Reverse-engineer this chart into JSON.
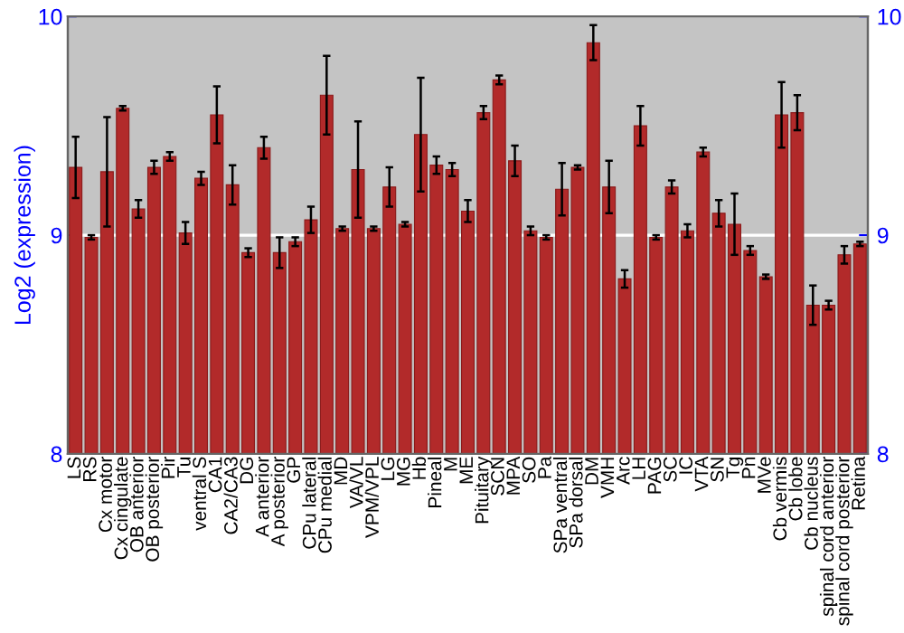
{
  "chart_data": {
    "type": "bar",
    "ylabel": "Log2 (expression)",
    "categories": [
      "LS",
      "RS",
      "Cx motor",
      "Cx cingulate",
      "OB anterior",
      "OB posterior",
      "Pir",
      "Tu",
      "ventral S",
      "CA1",
      "CA2/CA3",
      "DG",
      "A anterior",
      "A posterior",
      "GP",
      "CPu lateral",
      "CPu medial",
      "MD",
      "VA/VL",
      "VPM/VPL",
      "LG",
      "MG",
      "Hb",
      "Pineal",
      "M",
      "ME",
      "Pituitary",
      "SCN",
      "MPA",
      "SO",
      "Pa",
      "SPa ventral",
      "SPa dorsal",
      "DM",
      "VMH",
      "Arc",
      "LH",
      "PAG",
      "SC",
      "IC",
      "VTA",
      "SN",
      "Tg",
      "Pn",
      "MVe",
      "Cb vermis",
      "Cb lobe",
      "Cb nucleus",
      "spinal cord anterior",
      "spinal cord posterior",
      "Retina"
    ],
    "values": [
      9.31,
      8.99,
      9.29,
      9.58,
      9.12,
      9.31,
      9.36,
      9.01,
      9.26,
      9.55,
      9.23,
      8.92,
      9.4,
      8.92,
      8.97,
      9.07,
      9.64,
      9.03,
      9.3,
      9.03,
      9.22,
      9.05,
      9.46,
      9.32,
      9.3,
      9.11,
      9.56,
      9.71,
      9.34,
      9.02,
      8.99,
      9.21,
      9.31,
      9.88,
      9.22,
      8.8,
      9.5,
      8.99,
      9.22,
      9.02,
      9.38,
      9.1,
      9.05,
      8.93,
      8.81,
      9.55,
      9.56,
      8.68,
      8.68,
      8.91,
      8.96
    ],
    "errors": [
      0.14,
      0.01,
      0.25,
      0.01,
      0.04,
      0.03,
      0.02,
      0.05,
      0.03,
      0.13,
      0.09,
      0.02,
      0.05,
      0.07,
      0.02,
      0.06,
      0.18,
      0.01,
      0.22,
      0.01,
      0.09,
      0.01,
      0.26,
      0.04,
      0.03,
      0.05,
      0.03,
      0.02,
      0.07,
      0.02,
      0.01,
      0.12,
      0.01,
      0.08,
      0.12,
      0.04,
      0.09,
      0.01,
      0.03,
      0.03,
      0.02,
      0.06,
      0.14,
      0.02,
      0.01,
      0.15,
      0.08,
      0.09,
      0.02,
      0.04,
      0.01
    ],
    "color": "#b22a2a",
    "ylim": [
      8,
      10
    ],
    "yticks": [
      8,
      9,
      10
    ],
    "y2lim": [
      8,
      10
    ],
    "y2ticks": [
      8,
      9,
      10
    ],
    "grid": "y"
  }
}
